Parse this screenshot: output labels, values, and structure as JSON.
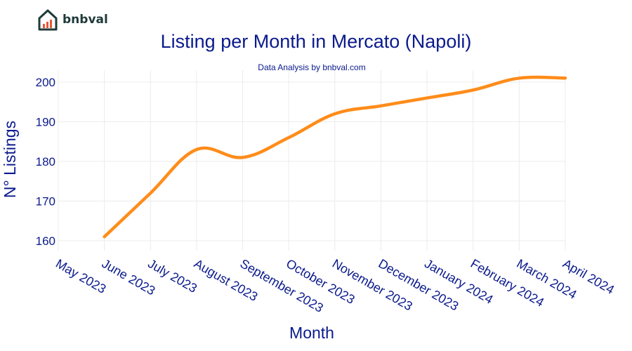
{
  "logo": {
    "text": "bnbval",
    "icon": "house-chart-icon",
    "color": "#1f3a3a",
    "accent": "#e8563a"
  },
  "chart_data": {
    "type": "line",
    "title": "Listing per Month in Mercato (Napoli)",
    "subtitle": "Data Analysis by bnbval.com",
    "xlabel": "Month",
    "ylabel": "N° Listings",
    "categories": [
      "May 2023",
      "June 2023",
      "July 2023",
      "August 2023",
      "September 2023",
      "October 2023",
      "November 2023",
      "December 2023",
      "January 2024",
      "February 2024",
      "March 2024",
      "April 2024"
    ],
    "series": [
      {
        "values": [
          null,
          161,
          172,
          183,
          181,
          186,
          192,
          194,
          196,
          198,
          201,
          201
        ],
        "color": "#ff8c1a"
      }
    ],
    "ylim": [
      157.5,
      203
    ],
    "yticks": [
      160,
      170,
      180,
      190,
      200
    ],
    "grid": true,
    "legend": "none"
  }
}
